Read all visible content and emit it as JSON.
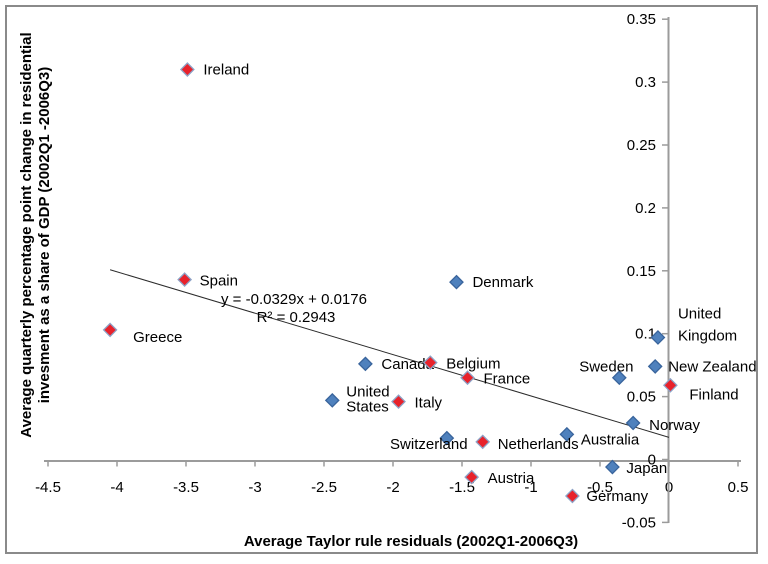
{
  "chart_data": {
    "type": "scatter",
    "title": "",
    "xlabel": "Average Taylor rule residuals (2002Q1-2006Q3)",
    "ylabel_lines": [
      "Average quarterly percentage point change in residential",
      "invesment as a share of GDP (2002Q1 -2006Q3)"
    ],
    "xlim": [
      -4.5,
      0.5
    ],
    "ylim": [
      -0.05,
      0.35
    ],
    "grid": false,
    "legend": "none",
    "x_ticks": [
      {
        "v": -4.5,
        "label": "-4.5"
      },
      {
        "v": -4,
        "label": "-4"
      },
      {
        "v": -3.5,
        "label": "-3.5"
      },
      {
        "v": -3,
        "label": "-3"
      },
      {
        "v": -2.5,
        "label": "-2.5"
      },
      {
        "v": -2,
        "label": "-2"
      },
      {
        "v": -1.5,
        "label": "-1.5"
      },
      {
        "v": -1,
        "label": "-1"
      },
      {
        "v": -0.5,
        "label": "-0.5"
      },
      {
        "v": 0,
        "label": "0"
      },
      {
        "v": 0.5,
        "label": "0.5"
      }
    ],
    "y_ticks": [
      {
        "v": 0.35,
        "label": "0.35"
      },
      {
        "v": 0.3,
        "label": "0.3"
      },
      {
        "v": 0.25,
        "label": "0.25"
      },
      {
        "v": 0.2,
        "label": "0.2"
      },
      {
        "v": 0.15,
        "label": "0.15"
      },
      {
        "v": 0.1,
        "label": "0.1"
      },
      {
        "v": 0.05,
        "label": "0.05"
      },
      {
        "v": 0,
        "label": "0"
      },
      {
        "v": -0.05,
        "label": "-0.05"
      }
    ],
    "trendline": {
      "slope": -0.0329,
      "intercept": 0.0176,
      "x_start": -4.05,
      "x_end": 0.0,
      "equation_label": "y = -0.0329x + 0.0176",
      "r2_label": "R² = 0.2943"
    },
    "groups": {
      "euro": {
        "fill": "#E8222B",
        "stroke": "#8DA2C6"
      },
      "other": {
        "fill": "#4F81BD",
        "stroke": "#39649C"
      }
    },
    "points": [
      {
        "name": "Ireland",
        "x": -3.49,
        "y": 0.31,
        "group": "euro",
        "label": {
          "dx": 16,
          "lines": [
            "Ireland"
          ],
          "dys": [
            5
          ]
        }
      },
      {
        "name": "Spain",
        "x": -3.51,
        "y": 0.143,
        "group": "euro",
        "label": {
          "dx": 15,
          "lines": [
            "Spain"
          ],
          "dys": [
            6
          ]
        }
      },
      {
        "name": "Greece",
        "x": -4.05,
        "y": 0.103,
        "group": "euro",
        "label": {
          "dx": 23,
          "lines": [
            "Greece"
          ],
          "dys": [
            12
          ]
        }
      },
      {
        "name": "Denmark",
        "x": -1.54,
        "y": 0.141,
        "group": "other",
        "label": {
          "dx": 16,
          "lines": [
            "Denmark"
          ],
          "dys": [
            5
          ]
        }
      },
      {
        "name": "Canada",
        "x": -2.2,
        "y": 0.076,
        "group": "other",
        "label": {
          "dx": 16,
          "lines": [
            "Canada"
          ],
          "dys": [
            5
          ]
        }
      },
      {
        "name": "Belgium",
        "x": -1.73,
        "y": 0.077,
        "group": "euro",
        "label": {
          "dx": 16,
          "lines": [
            "Belgium"
          ],
          "dys": [
            6
          ]
        }
      },
      {
        "name": "France",
        "x": -1.46,
        "y": 0.065,
        "group": "euro",
        "label": {
          "dx": 16,
          "lines": [
            "France"
          ],
          "dys": [
            6
          ]
        }
      },
      {
        "name": "United States",
        "x": -2.44,
        "y": 0.047,
        "group": "other",
        "label": {
          "dx": 14,
          "lines": [
            "United",
            "States"
          ],
          "dys": [
            -4,
            11
          ]
        }
      },
      {
        "name": "Italy",
        "x": -1.96,
        "y": 0.046,
        "group": "euro",
        "label": {
          "dx": 16,
          "lines": [
            "Italy"
          ],
          "dys": [
            6
          ]
        }
      },
      {
        "name": "Sweden",
        "x": -0.36,
        "y": 0.065,
        "group": "other",
        "label": {
          "dx": -13,
          "lines": [
            "Sweden"
          ],
          "dys": [
            -6
          ],
          "anchor": "middle"
        }
      },
      {
        "name": "United Kingdom",
        "x": -0.08,
        "y": 0.097,
        "group": "other",
        "label": {
          "dx": 20,
          "lines": [
            "United",
            "Kingdom"
          ],
          "dys": [
            -19,
            3
          ]
        }
      },
      {
        "name": "New Zealand",
        "x": -0.1,
        "y": 0.074,
        "group": "other",
        "label": {
          "dx": 13,
          "lines": [
            "New Zealand"
          ],
          "dys": [
            5
          ]
        }
      },
      {
        "name": "Finland",
        "x": 0.01,
        "y": 0.059,
        "group": "euro",
        "label": {
          "dx": 19,
          "lines": [
            "Finland"
          ],
          "dys": [
            14
          ]
        }
      },
      {
        "name": "Norway",
        "x": -0.26,
        "y": 0.029,
        "group": "other",
        "label": {
          "dx": 16,
          "lines": [
            "Norway"
          ],
          "dys": [
            7
          ]
        }
      },
      {
        "name": "Australia",
        "x": -0.74,
        "y": 0.02,
        "group": "other",
        "label": {
          "dx": 14,
          "lines": [
            "Australia"
          ],
          "dys": [
            10
          ]
        }
      },
      {
        "name": "Switzerland",
        "x": -1.61,
        "y": 0.017,
        "group": "other",
        "label": {
          "dx": -18,
          "lines": [
            "Switzerland"
          ],
          "dys": [
            11
          ],
          "anchor": "middle"
        }
      },
      {
        "name": "Netherlands",
        "x": -1.35,
        "y": 0.014,
        "group": "euro",
        "label": {
          "dx": 15,
          "lines": [
            "Netherlands"
          ],
          "dys": [
            7
          ]
        }
      },
      {
        "name": "Austria",
        "x": -1.43,
        "y": -0.014,
        "group": "euro",
        "label": {
          "dx": 16,
          "lines": [
            "Austria"
          ],
          "dys": [
            6
          ]
        }
      },
      {
        "name": "Japan",
        "x": -0.41,
        "y": -0.006,
        "group": "other",
        "label": {
          "dx": 14,
          "lines": [
            "Japan"
          ],
          "dys": [
            6
          ]
        }
      },
      {
        "name": "Germany",
        "x": -0.7,
        "y": -0.029,
        "group": "euro",
        "label": {
          "dx": 14,
          "lines": [
            "Germany"
          ],
          "dys": [
            5
          ]
        }
      }
    ],
    "colors": {
      "axis": "#9B9B9B",
      "trendline": "#2B2B2B",
      "border": "#8A8A8A",
      "text": "#000000"
    }
  }
}
